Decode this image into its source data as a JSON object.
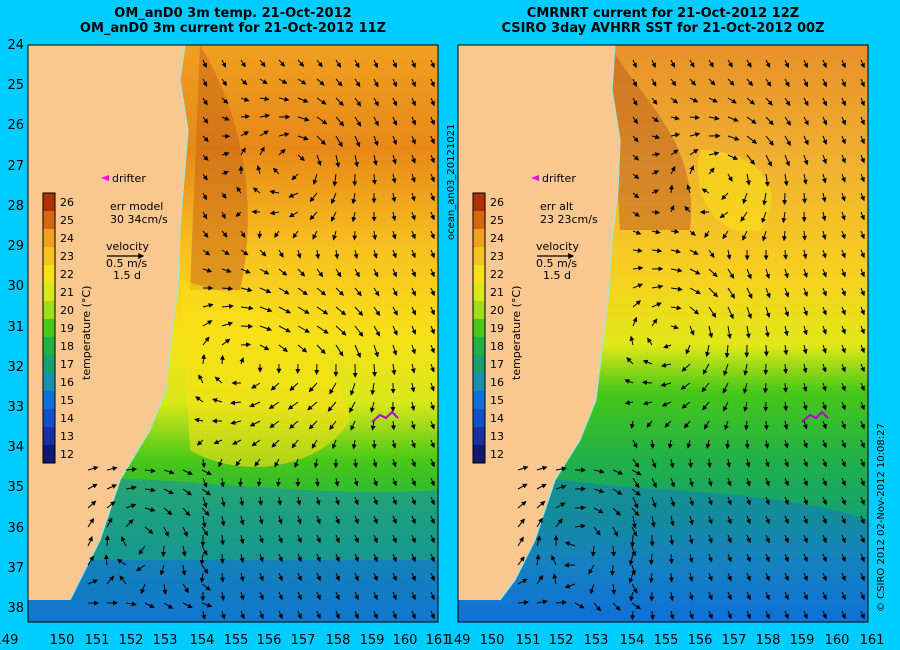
{
  "panels": [
    {
      "id": "left",
      "title_line1": "OM_anD0 3m temp. 21-Oct-2012",
      "title_line2": "OM_anD0 3m current for 21-Oct-2012 11Z",
      "err_label": "err model",
      "err_value": "30 34cm/s",
      "drifter_label": "drifter",
      "velocity_label": "velocity",
      "velocity_scale": "0.5 m/s",
      "velocity_time": "1.5 d",
      "colorbar_label": "temperature (°C)"
    },
    {
      "id": "right",
      "title_line1": "CMRNRT current for 21-Oct-2012 12Z",
      "title_line2": "CSIRO 3day AVHRR SST for 21-Oct-2012 00Z",
      "err_label": "err alt",
      "err_value": "23 23cm/s",
      "drifter_label": "drifter",
      "velocity_label": "velocity",
      "velocity_scale": "0.5 m/s",
      "velocity_time": "1.5 d",
      "colorbar_label": "temperature (°C)"
    }
  ],
  "map": {
    "lon_ticks": [
      "149",
      "150",
      "151",
      "152",
      "153",
      "154",
      "155",
      "156",
      "157",
      "158",
      "159",
      "160",
      "161"
    ],
    "lat_ticks": [
      "24",
      "25",
      "26",
      "27",
      "28",
      "29",
      "30",
      "31",
      "32",
      "33",
      "34",
      "35",
      "36",
      "37",
      "38"
    ],
    "lon_range": [
      149,
      161
    ],
    "lat_range": [
      24,
      38
    ],
    "land_color": "#f8c890",
    "coast_color": "#a0e8e0"
  },
  "colorbar": {
    "values": [
      "26",
      "25",
      "24",
      "23",
      "22",
      "21",
      "20",
      "19",
      "18",
      "17",
      "16",
      "15",
      "14",
      "13",
      "12"
    ],
    "colors": [
      "#b03000",
      "#d86810",
      "#f0a020",
      "#f8c020",
      "#f8e018",
      "#d8e818",
      "#a0dc18",
      "#48c818",
      "#20b048",
      "#18a070",
      "#1890b0",
      "#1070d8",
      "#1050c8",
      "#1830a0",
      "#101870"
    ]
  },
  "side": {
    "run_id": "ocean_an03_20121021",
    "stamp": "© CSIRO 2012   02-Nov-2012 10:08:27"
  }
}
